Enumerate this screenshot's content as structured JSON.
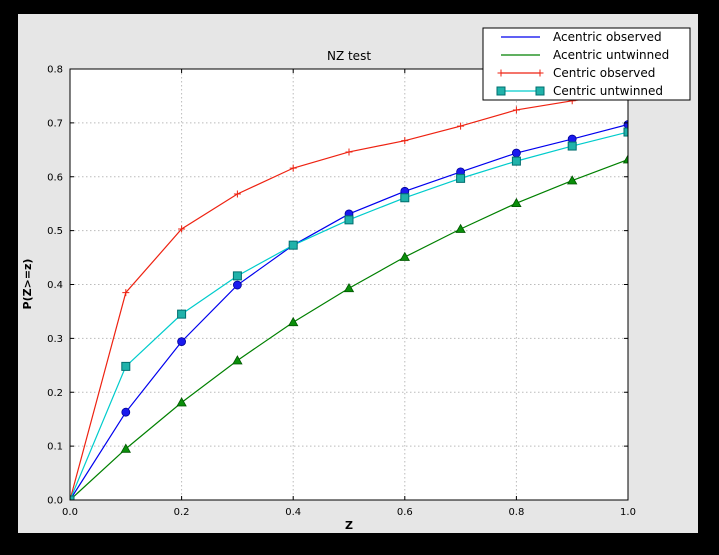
{
  "window": {
    "outer_background": "#000000",
    "figure_background": "#e6e6e6",
    "plot_background": "#ffffff",
    "grid_color": "#bbbbbb",
    "axis_color": "#000000"
  },
  "chart_data": {
    "type": "line",
    "title": "NZ test",
    "xlabel": "Z",
    "ylabel": "P(Z>=z)",
    "xlim": [
      0.0,
      1.0
    ],
    "ylim": [
      0.0,
      0.8
    ],
    "grid": true,
    "grid_style": "dotted",
    "legend_position": "upper right",
    "xticks": {
      "positions": [
        0.0,
        0.2,
        0.4,
        0.6,
        0.8,
        1.0
      ],
      "labels": [
        "0.0",
        "0.2",
        "0.4",
        "0.6",
        "0.8",
        "1.0"
      ]
    },
    "yticks": {
      "positions": [
        0.0,
        0.1,
        0.2,
        0.3,
        0.4,
        0.5,
        0.6,
        0.7,
        0.8
      ],
      "labels": [
        "0.0",
        "0.1",
        "0.2",
        "0.3",
        "0.4",
        "0.5",
        "0.6",
        "0.7",
        "0.8"
      ]
    },
    "x": [
      0.0,
      0.1,
      0.2,
      0.3,
      0.4,
      0.5,
      0.6,
      0.7,
      0.8,
      0.9,
      1.0
    ],
    "series": [
      {
        "name": "Acentric observed",
        "color": "#0000ee",
        "marker": "circle",
        "marker_fill": "#1a1aee",
        "marker_edge": "#000099",
        "legend_marker": false,
        "values": [
          0.0,
          0.163,
          0.294,
          0.399,
          0.473,
          0.531,
          0.573,
          0.609,
          0.644,
          0.67,
          0.697
        ]
      },
      {
        "name": "Acentric untwinned",
        "color": "#008000",
        "marker": "triangle",
        "marker_fill": "#0a8f0a",
        "marker_edge": "#005500",
        "legend_marker": false,
        "values": [
          0.0,
          0.095,
          0.181,
          0.259,
          0.33,
          0.393,
          0.451,
          0.503,
          0.551,
          0.593,
          0.632
        ]
      },
      {
        "name": "Centric observed",
        "color": "#ee2211",
        "marker": "plus",
        "marker_fill": "#ee2211",
        "marker_edge": "#ee2211",
        "legend_marker": true,
        "values": [
          0.0,
          0.385,
          0.503,
          0.568,
          0.616,
          0.646,
          0.667,
          0.694,
          0.724,
          0.741,
          0.755
        ]
      },
      {
        "name": "Centric untwinned",
        "color": "#00cccc",
        "marker": "square",
        "marker_fill": "#20b2aa",
        "marker_edge": "#006e6e",
        "legend_marker": true,
        "values": [
          0.0,
          0.248,
          0.345,
          0.416,
          0.473,
          0.52,
          0.561,
          0.597,
          0.629,
          0.657,
          0.683
        ]
      }
    ]
  }
}
